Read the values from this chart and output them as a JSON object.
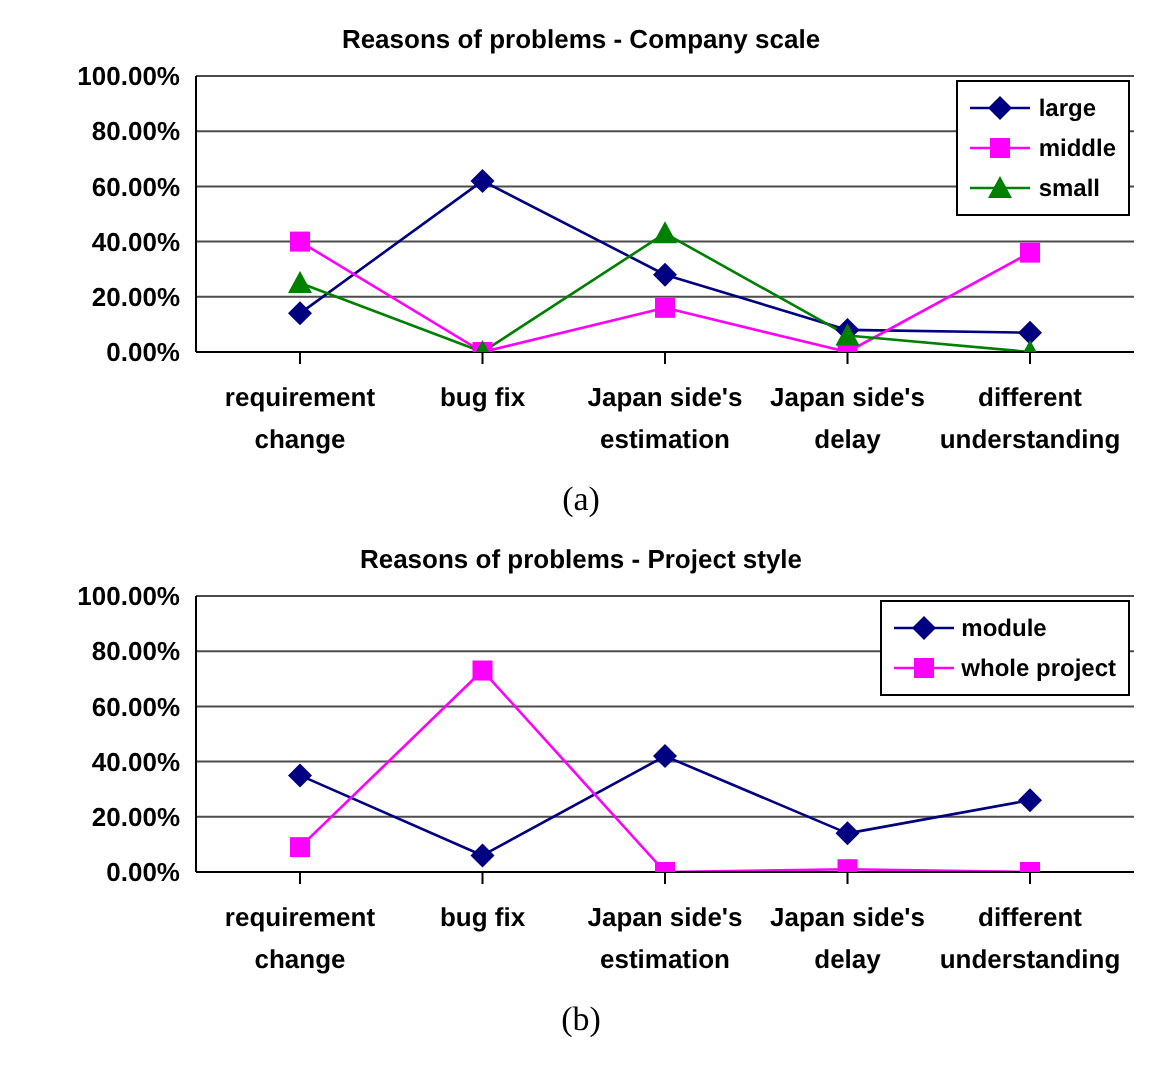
{
  "chart_data": [
    {
      "type": "line",
      "title": "Reasons of problems - Company scale",
      "categories": [
        "requirement change",
        "bug fix",
        "Japan side's estimation",
        "Japan side's delay",
        "different understanding"
      ],
      "series": [
        {
          "name": "large",
          "color": "#000080",
          "marker": "diamond",
          "values": [
            14,
            62,
            28,
            8,
            7
          ]
        },
        {
          "name": "middle",
          "color": "#ff00ff",
          "marker": "square",
          "values": [
            40,
            0,
            16,
            0,
            36
          ]
        },
        {
          "name": "small",
          "color": "#008000",
          "marker": "triangle",
          "values": [
            25,
            0,
            43,
            6,
            0
          ]
        }
      ],
      "ylim": [
        0,
        100
      ],
      "yticks": [
        {
          "value": 0,
          "label": "0.00%"
        },
        {
          "value": 20,
          "label": "20.00%"
        },
        {
          "value": 40,
          "label": "40.00%"
        },
        {
          "value": 60,
          "label": "60.00%"
        },
        {
          "value": 80,
          "label": "80.00%"
        },
        {
          "value": 100,
          "label": "100.00%"
        }
      ],
      "grid": "y",
      "legend": "top right",
      "annotations": [
        "(a)"
      ]
    },
    {
      "type": "line",
      "title": "Reasons of problems - Project style",
      "categories": [
        "requirement change",
        "bug fix",
        "Japan side's estimation",
        "Japan side's delay",
        "different understanding"
      ],
      "series": [
        {
          "name": "module",
          "color": "#000080",
          "marker": "diamond",
          "values": [
            35,
            6,
            42,
            14,
            26
          ]
        },
        {
          "name": "whole project",
          "color": "#ff00ff",
          "marker": "square",
          "values": [
            9,
            73,
            0,
            1,
            0
          ]
        }
      ],
      "ylim": [
        0,
        100
      ],
      "yticks": [
        {
          "value": 0,
          "label": "0.00%"
        },
        {
          "value": 20,
          "label": "20.00%"
        },
        {
          "value": 40,
          "label": "40.00%"
        },
        {
          "value": 60,
          "label": "60.00%"
        },
        {
          "value": 80,
          "label": "80.00%"
        },
        {
          "value": 100,
          "label": "100.00%"
        }
      ],
      "grid": "y",
      "legend": "top right",
      "annotations": [
        "(b)"
      ]
    }
  ]
}
